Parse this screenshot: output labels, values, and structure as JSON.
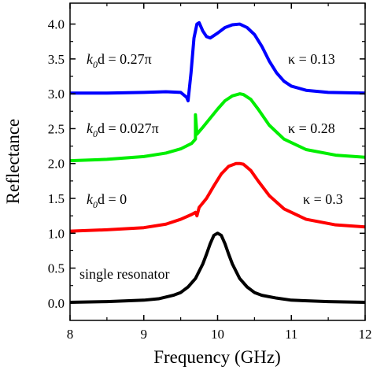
{
  "chart_data": {
    "type": "line",
    "xlabel": "Frequency (GHz)",
    "ylabel": "Reflectance",
    "xlim": [
      8,
      12
    ],
    "ylim": [
      -0.25,
      4.3
    ],
    "x_ticks": [
      "8",
      "9",
      "10",
      "11",
      "12"
    ],
    "y_ticks": [
      "0.0",
      "0.5",
      "1.0",
      "1.5",
      "2.0",
      "2.5",
      "3.0",
      "3.5",
      "4.0"
    ],
    "grid": false,
    "series": [
      {
        "color": "#000000",
        "x": [
          8.0,
          8.5,
          9.0,
          9.2,
          9.4,
          9.5,
          9.6,
          9.7,
          9.8,
          9.85,
          9.9,
          9.95,
          10.0,
          10.05,
          10.1,
          10.15,
          10.2,
          10.3,
          10.4,
          10.5,
          10.6,
          10.8,
          11.0,
          11.5,
          12.0
        ],
        "y": [
          0.01,
          0.02,
          0.04,
          0.06,
          0.11,
          0.15,
          0.23,
          0.35,
          0.56,
          0.7,
          0.85,
          0.97,
          1.0,
          0.97,
          0.85,
          0.7,
          0.56,
          0.35,
          0.23,
          0.15,
          0.11,
          0.07,
          0.04,
          0.02,
          0.01
        ]
      },
      {
        "color": "#ff0000",
        "x": [
          8.0,
          8.5,
          9.0,
          9.3,
          9.5,
          9.65,
          9.7,
          9.72,
          9.75,
          9.85,
          9.95,
          10.05,
          10.15,
          10.25,
          10.3,
          10.35,
          10.45,
          10.55,
          10.7,
          10.9,
          11.2,
          11.6,
          12.0
        ],
        "y": [
          1.03,
          1.05,
          1.08,
          1.13,
          1.2,
          1.27,
          1.3,
          1.25,
          1.37,
          1.5,
          1.68,
          1.85,
          1.96,
          2.0,
          2.0,
          1.99,
          1.9,
          1.75,
          1.54,
          1.35,
          1.2,
          1.12,
          1.09
        ]
      },
      {
        "color": "#00ee00",
        "x": [
          8.0,
          8.5,
          9.0,
          9.3,
          9.5,
          9.65,
          9.7,
          9.7,
          9.72,
          9.8,
          9.9,
          10.0,
          10.1,
          10.2,
          10.3,
          10.35,
          10.45,
          10.55,
          10.7,
          10.9,
          11.2,
          11.6,
          12.0
        ],
        "y": [
          2.04,
          2.06,
          2.1,
          2.15,
          2.21,
          2.29,
          2.35,
          2.7,
          2.42,
          2.52,
          2.65,
          2.78,
          2.9,
          2.97,
          3.0,
          2.99,
          2.92,
          2.78,
          2.55,
          2.35,
          2.2,
          2.12,
          2.09
        ]
      },
      {
        "color": "#0000ff",
        "x": [
          8.0,
          8.5,
          9.0,
          9.3,
          9.5,
          9.58,
          9.6,
          9.64,
          9.68,
          9.72,
          9.75,
          9.8,
          9.85,
          9.9,
          10.0,
          10.1,
          10.2,
          10.3,
          10.4,
          10.5,
          10.6,
          10.7,
          10.8,
          10.9,
          11.0,
          11.2,
          11.5,
          12.0
        ],
        "y": [
          3.01,
          3.01,
          3.02,
          3.03,
          3.02,
          2.95,
          2.9,
          3.3,
          3.8,
          4.0,
          4.02,
          3.9,
          3.82,
          3.8,
          3.87,
          3.95,
          3.99,
          4.0,
          3.95,
          3.85,
          3.68,
          3.47,
          3.3,
          3.18,
          3.11,
          3.05,
          3.02,
          3.01
        ]
      }
    ],
    "annotations": {
      "blue_left": {
        "kd": "k",
        "sub": "0",
        "rest": "d = 0.27π"
      },
      "green_left": {
        "kd": "k",
        "sub": "0",
        "rest": "d = 0.027π"
      },
      "red_left": {
        "kd": "k",
        "sub": "0",
        "rest": "d = 0"
      },
      "black_left": "single resonator",
      "blue_right": "κ = 0.13",
      "green_right": "κ = 0.28",
      "red_right": "κ = 0.3"
    }
  }
}
